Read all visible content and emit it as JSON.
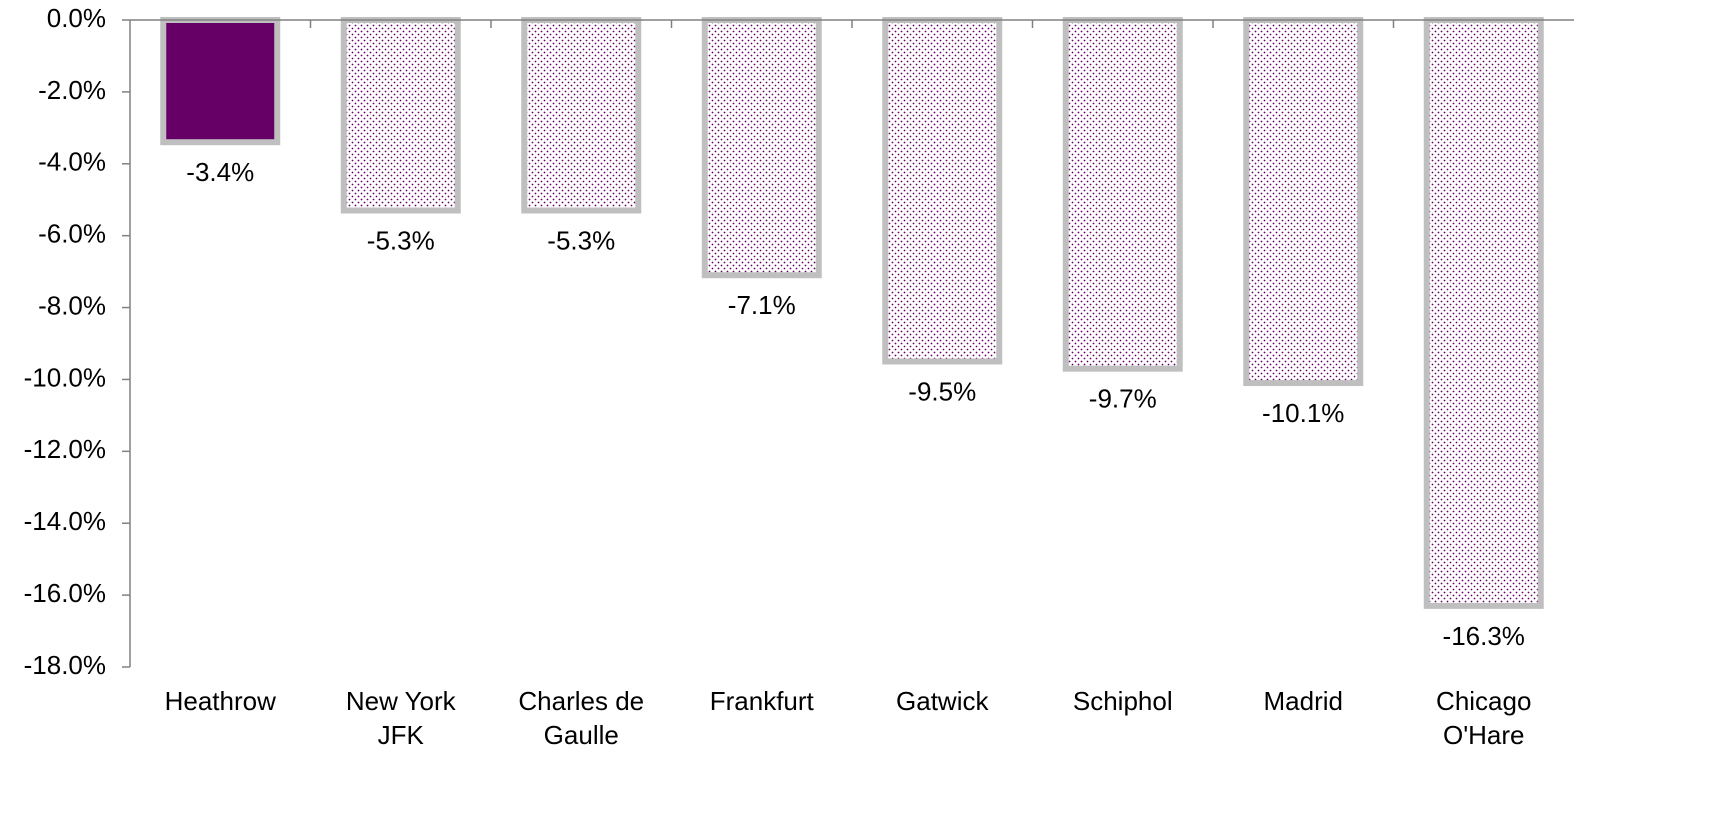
{
  "chart_data": {
    "type": "bar",
    "categories": [
      "Heathrow",
      "New York\nJFK",
      "Charles de\nGaulle",
      "Frankfurt",
      "Gatwick",
      "Schiphol",
      "Madrid",
      "Chicago\nO'Hare"
    ],
    "values": [
      -3.4,
      -5.3,
      -5.3,
      -7.1,
      -9.5,
      -9.7,
      -10.1,
      -16.3
    ],
    "value_labels": [
      "-3.4%",
      "-5.3%",
      "-5.3%",
      "-7.1%",
      "-9.5%",
      "-9.7%",
      "-10.1%",
      "-16.3%"
    ],
    "colors": [
      "#660066",
      "#660066",
      "#660066",
      "#660066",
      "#660066",
      "#660066",
      "#660066",
      "#660066"
    ],
    "fills": [
      "solid",
      "dotted",
      "dotted",
      "dotted",
      "dotted",
      "dotted",
      "dotted",
      "dotted"
    ],
    "ylim": [
      -18,
      0
    ],
    "yticks": [
      {
        "value": 0,
        "label": "0.0%"
      },
      {
        "value": -2,
        "label": "-2.0%"
      },
      {
        "value": -4,
        "label": "-4.0%"
      },
      {
        "value": -6,
        "label": "-6.0%"
      },
      {
        "value": -8,
        "label": "-8.0%"
      },
      {
        "value": -10,
        "label": "-10.0%"
      },
      {
        "value": -12,
        "label": "-12.0%"
      },
      {
        "value": -14,
        "label": "-14.0%"
      },
      {
        "value": -16,
        "label": "-16.0%"
      },
      {
        "value": -18,
        "label": "-18.0%"
      }
    ],
    "grid": false
  }
}
